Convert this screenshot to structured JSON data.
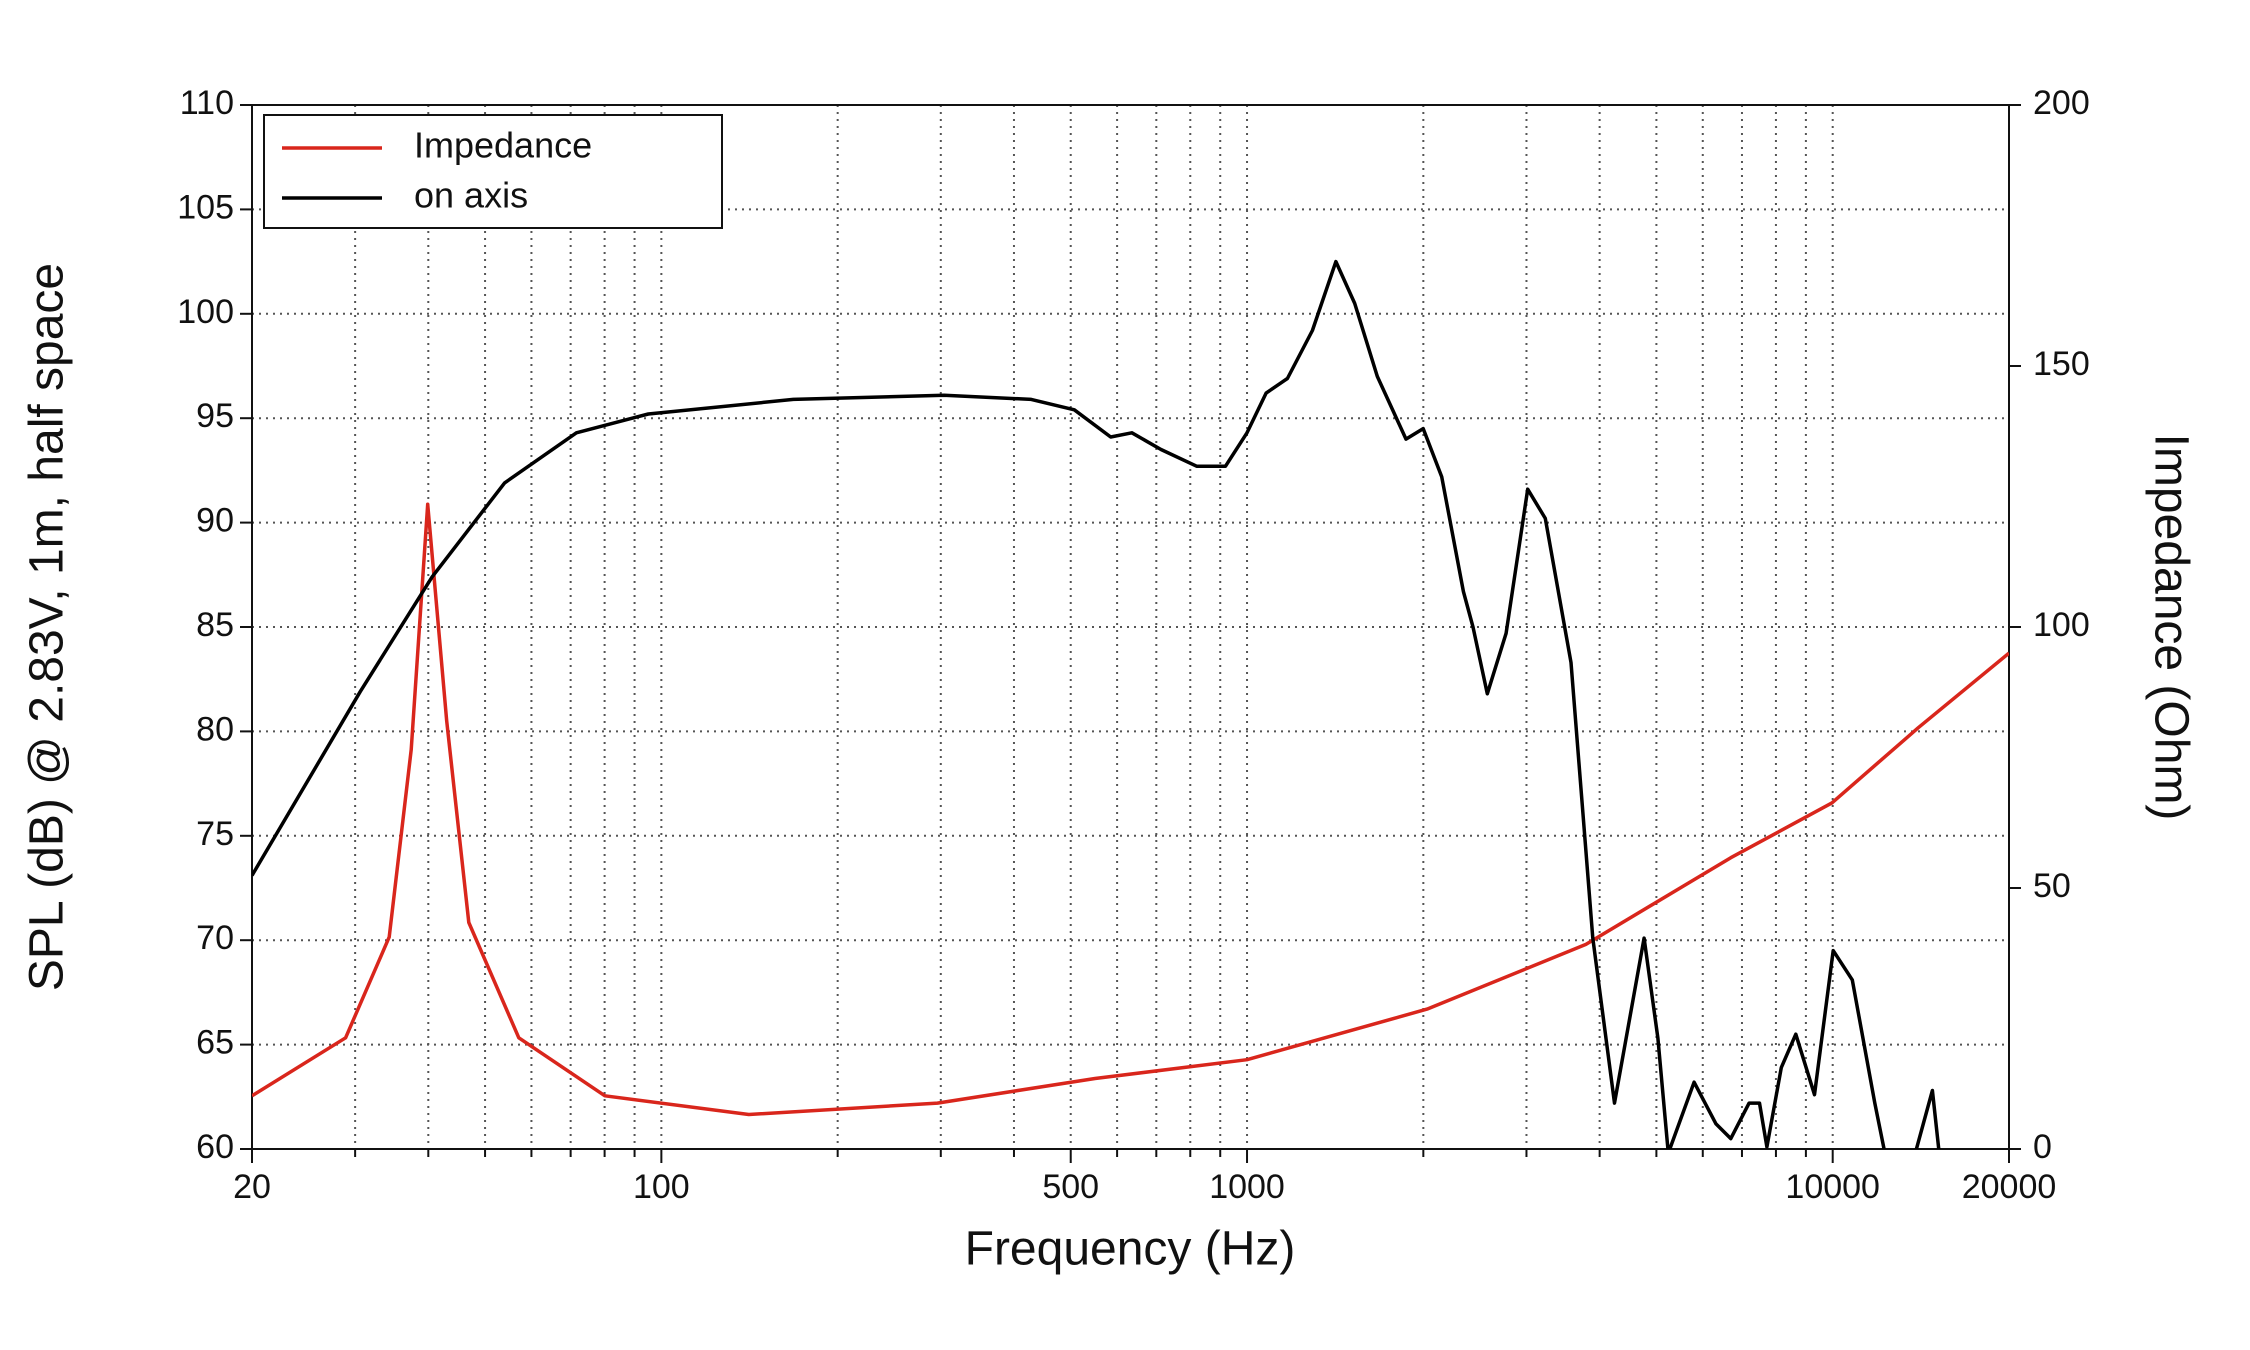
{
  "chart_data": {
    "type": "line",
    "xlabel": "Frequency (Hz)",
    "ylabel": "SPL (dB) @ 2.83V, 1m, half space",
    "y2label": "Impedance (Ohm)",
    "xscale": "log",
    "xlim": [
      20,
      20000
    ],
    "xticks": [
      20,
      100,
      500,
      1000,
      10000,
      20000
    ],
    "xminor_ticks": [
      30,
      40,
      50,
      60,
      70,
      80,
      90,
      200,
      300,
      400,
      600,
      700,
      800,
      900,
      2000,
      3000,
      4000,
      5000,
      6000,
      7000,
      8000,
      9000
    ],
    "ylim": [
      60,
      110
    ],
    "yticks": [
      60,
      65,
      70,
      75,
      80,
      85,
      90,
      95,
      100,
      105,
      110
    ],
    "y2lim": [
      0,
      200
    ],
    "y2ticks": [
      0,
      50,
      100,
      150,
      200
    ],
    "grid": true,
    "legend": "upper left",
    "series": [
      {
        "name": "Impedance",
        "color": "#d9261c",
        "axis": "y2",
        "x": [
          20,
          28.9,
          34.3,
          37.4,
          39.9,
          43,
          46.9,
          57.1,
          80.1,
          141,
          296,
          550,
          1000,
          2030,
          3790,
          6700,
          9970,
          14000,
          20000
        ],
        "values": [
          10.2,
          21.3,
          40.6,
          76.5,
          123.5,
          82,
          43.4,
          21.3,
          10.2,
          6.6,
          8.8,
          13.5,
          17.1,
          26.8,
          39.2,
          55.8,
          66.3,
          80.7,
          95
        ]
      },
      {
        "name": "on axis",
        "color": "#000000",
        "axis": "y",
        "x": [
          20,
          30.6,
          40.6,
          54,
          71.6,
          95,
          168,
          304,
          428,
          507,
          585,
          636,
          713,
          820,
          919,
          1000,
          1078,
          1172,
          1293,
          1418,
          1527,
          1669,
          1868,
          1999,
          2150,
          2341,
          2431,
          2572,
          2769,
          3015,
          3230,
          3574,
          3894,
          4240,
          4765,
          5030,
          5240,
          5800,
          6320,
          6700,
          7200,
          7500,
          7720,
          8170,
          8650,
          9310,
          10020,
          10800,
          11800,
          12280,
          13200,
          14800,
          15200
        ],
        "values": [
          73.1,
          81.9,
          87.4,
          91.9,
          94.3,
          95.2,
          95.9,
          96.1,
          95.9,
          95.4,
          94.1,
          94.3,
          93.5,
          92.7,
          92.7,
          94.3,
          96.2,
          96.9,
          99.2,
          102.5,
          100.5,
          97,
          94,
          94.5,
          92.2,
          86.7,
          85,
          81.8,
          84.7,
          91.6,
          90.2,
          83.3,
          70.1,
          62.2,
          70.1,
          65.3,
          59.8,
          63.2,
          61.2,
          60.5,
          62.2,
          62.2,
          60.1,
          63.9,
          65.5,
          62.6,
          69.5,
          68.1,
          62.2,
          59.8,
          57.7,
          62.8,
          59.8
        ]
      }
    ]
  }
}
